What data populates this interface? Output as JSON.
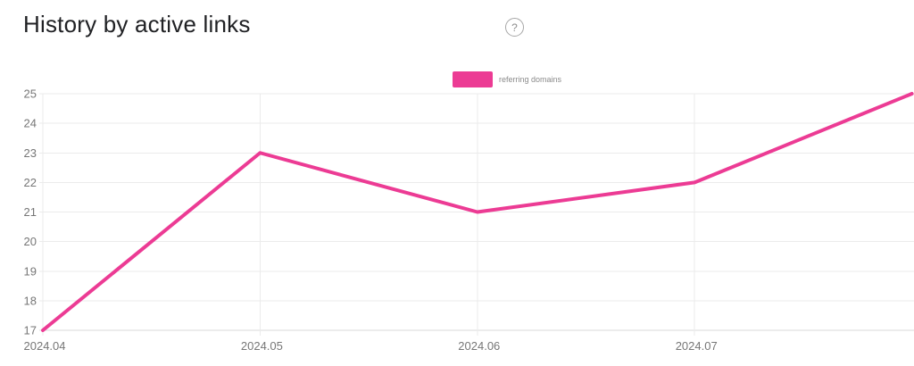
{
  "header": {
    "title": "History by active links",
    "help_icon_glyph": "?"
  },
  "legend": {
    "items": [
      {
        "label": "referring domains",
        "color": "#ec3b94"
      }
    ]
  },
  "chart_data": {
    "type": "line",
    "title": "History by active links",
    "categories": [
      "2024.04",
      "2024.05",
      "2024.06",
      "2024.07",
      ""
    ],
    "series": [
      {
        "name": "referring domains",
        "color": "#ec3b94",
        "values": [
          17,
          23,
          21,
          22,
          25
        ]
      }
    ],
    "ylim": [
      17,
      25
    ],
    "y_ticks": [
      17,
      18,
      19,
      20,
      21,
      22,
      23,
      24,
      25
    ],
    "grid": true,
    "legend_position": "top-center",
    "colors": {
      "grid": "#ebebeb",
      "axis": "#d9d9d9",
      "tick_label": "#767676"
    }
  }
}
